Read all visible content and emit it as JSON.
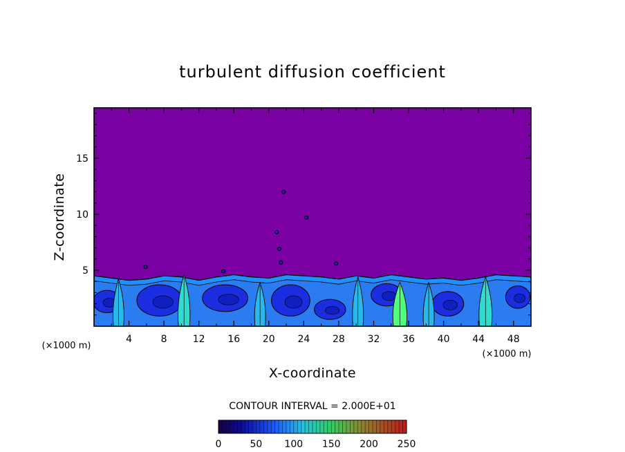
{
  "chart_data": {
    "type": "heatmap",
    "title": "turbulent diffusion coefficient",
    "xlabel": "X-coordinate",
    "ylabel": "Z-coordinate",
    "x_unit": "(×1000 m)",
    "y_unit": "(×1000 m)",
    "xlim": [
      0,
      50
    ],
    "ylim": [
      0,
      19.5
    ],
    "x_ticks": [
      4,
      8,
      12,
      16,
      20,
      24,
      28,
      32,
      36,
      40,
      44,
      48
    ],
    "y_ticks": [
      5,
      10,
      15
    ],
    "background_value": 0,
    "colorbar": {
      "title": "CONTOUR INTERVAL = 2.000E+01",
      "ticks": [
        0,
        50,
        100,
        150,
        200,
        250
      ],
      "range": [
        0,
        250
      ],
      "contour_interval": 20
    },
    "boundary_layer_top": [
      [
        0,
        4.5
      ],
      [
        2,
        4.3
      ],
      [
        4,
        4.1
      ],
      [
        6,
        4.2
      ],
      [
        8,
        4.5
      ],
      [
        10,
        4.4
      ],
      [
        12,
        4.1
      ],
      [
        14,
        4.4
      ],
      [
        16,
        4.6
      ],
      [
        18,
        4.4
      ],
      [
        20,
        4.3
      ],
      [
        22,
        4.6
      ],
      [
        24,
        4.5
      ],
      [
        26,
        4.4
      ],
      [
        28,
        4.2
      ],
      [
        30,
        4.5
      ],
      [
        32,
        4.3
      ],
      [
        34,
        4.6
      ],
      [
        36,
        4.4
      ],
      [
        38,
        4.2
      ],
      [
        40,
        4.3
      ],
      [
        42,
        4.1
      ],
      [
        44,
        4.3
      ],
      [
        46,
        4.6
      ],
      [
        48,
        4.5
      ],
      [
        50,
        4.4
      ]
    ],
    "cells": [
      {
        "x": 1.5,
        "z": 2.2,
        "rx": 1.6,
        "rz": 1.0,
        "value": 20
      },
      {
        "x": 7.5,
        "z": 2.3,
        "rx": 2.6,
        "rz": 1.4,
        "value": 20
      },
      {
        "x": 15.0,
        "z": 2.5,
        "rx": 2.6,
        "rz": 1.2,
        "value": 20
      },
      {
        "x": 22.5,
        "z": 2.3,
        "rx": 2.2,
        "rz": 1.4,
        "value": 20
      },
      {
        "x": 27.0,
        "z": 1.5,
        "rx": 1.8,
        "rz": 0.9,
        "value": 20
      },
      {
        "x": 33.5,
        "z": 2.8,
        "rx": 1.8,
        "rz": 1.0,
        "value": 20
      },
      {
        "x": 40.5,
        "z": 2.0,
        "rx": 1.8,
        "rz": 1.1,
        "value": 20
      },
      {
        "x": 48.5,
        "z": 2.6,
        "rx": 1.4,
        "rz": 1.0,
        "value": 20
      }
    ],
    "plumes": [
      {
        "x": 2.8,
        "z": 2.3,
        "value": 70
      },
      {
        "x": 10.3,
        "z": 2.7,
        "value": 90
      },
      {
        "x": 19.0,
        "z": 2.0,
        "value": 70
      },
      {
        "x": 30.2,
        "z": 2.5,
        "value": 70
      },
      {
        "x": 35.0,
        "z": 2.0,
        "value": 130
      },
      {
        "x": 38.3,
        "z": 2.0,
        "value": 70
      },
      {
        "x": 44.8,
        "z": 2.5,
        "value": 110
      }
    ],
    "isolated_patches": [
      {
        "x": 5.9,
        "z": 5.3
      },
      {
        "x": 14.8,
        "z": 4.9
      },
      {
        "x": 21.7,
        "z": 12.0
      },
      {
        "x": 24.3,
        "z": 9.7
      },
      {
        "x": 21.2,
        "z": 6.9
      },
      {
        "x": 27.7,
        "z": 5.6
      },
      {
        "x": 21.4,
        "z": 5.7
      },
      {
        "x": 20.9,
        "z": 8.4
      }
    ],
    "colors": {
      "background": "#7a00a3",
      "frame": "#000000",
      "contour": "#000000",
      "low": "#1a2ee0",
      "mid": "#1e90ff",
      "high": "#2fdccf",
      "peak": "#50ff7a"
    }
  }
}
